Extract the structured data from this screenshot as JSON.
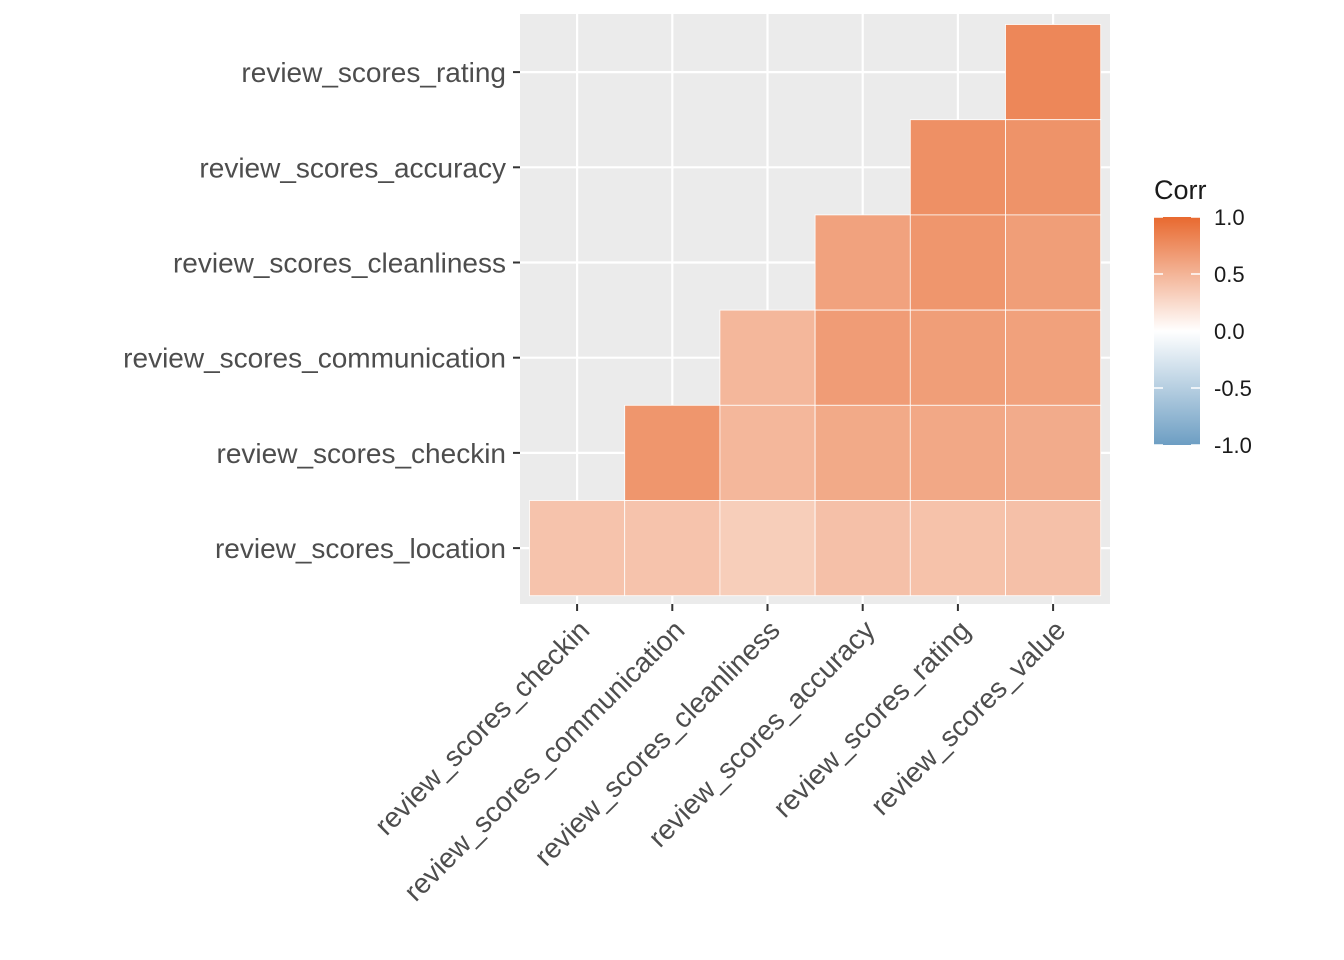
{
  "chart_data": {
    "type": "heatmap",
    "x_categories": [
      "review_scores_checkin",
      "review_scores_communication",
      "review_scores_cleanliness",
      "review_scores_accuracy",
      "review_scores_rating",
      "review_scores_value"
    ],
    "y_categories": [
      "review_scores_rating",
      "review_scores_accuracy",
      "review_scores_cleanliness",
      "review_scores_communication",
      "review_scores_checkin",
      "review_scores_location"
    ],
    "cells": [
      {
        "x": "review_scores_value",
        "y": "review_scores_rating",
        "value": 0.8
      },
      {
        "x": "review_scores_rating",
        "y": "review_scores_accuracy",
        "value": 0.74
      },
      {
        "x": "review_scores_value",
        "y": "review_scores_accuracy",
        "value": 0.72
      },
      {
        "x": "review_scores_accuracy",
        "y": "review_scores_cleanliness",
        "value": 0.62
      },
      {
        "x": "review_scores_rating",
        "y": "review_scores_cleanliness",
        "value": 0.7
      },
      {
        "x": "review_scores_value",
        "y": "review_scores_cleanliness",
        "value": 0.65
      },
      {
        "x": "review_scores_cleanliness",
        "y": "review_scores_communication",
        "value": 0.48
      },
      {
        "x": "review_scores_accuracy",
        "y": "review_scores_communication",
        "value": 0.66
      },
      {
        "x": "review_scores_rating",
        "y": "review_scores_communication",
        "value": 0.65
      },
      {
        "x": "review_scores_value",
        "y": "review_scores_communication",
        "value": 0.63
      },
      {
        "x": "review_scores_communication",
        "y": "review_scores_checkin",
        "value": 0.7
      },
      {
        "x": "review_scores_cleanliness",
        "y": "review_scores_checkin",
        "value": 0.48
      },
      {
        "x": "review_scores_accuracy",
        "y": "review_scores_checkin",
        "value": 0.57
      },
      {
        "x": "review_scores_rating",
        "y": "review_scores_checkin",
        "value": 0.58
      },
      {
        "x": "review_scores_value",
        "y": "review_scores_checkin",
        "value": 0.56
      },
      {
        "x": "review_scores_checkin",
        "y": "review_scores_location",
        "value": 0.4
      },
      {
        "x": "review_scores_communication",
        "y": "review_scores_location",
        "value": 0.4
      },
      {
        "x": "review_scores_cleanliness",
        "y": "review_scores_location",
        "value": 0.33
      },
      {
        "x": "review_scores_accuracy",
        "y": "review_scores_location",
        "value": 0.42
      },
      {
        "x": "review_scores_rating",
        "y": "review_scores_location",
        "value": 0.41
      },
      {
        "x": "review_scores_value",
        "y": "review_scores_location",
        "value": 0.42
      }
    ],
    "color_scale": {
      "low": "#6d9ec3",
      "mid": "#ffffff",
      "high": "#e8692f",
      "limits": [
        -1,
        1
      ]
    },
    "legend": {
      "title": "Corr",
      "ticks": [
        "1.0",
        "0.5",
        "0.0",
        "-0.5",
        "-1.0"
      ],
      "position": "right"
    },
    "panel_background": "#ebebeb",
    "grid": true
  }
}
